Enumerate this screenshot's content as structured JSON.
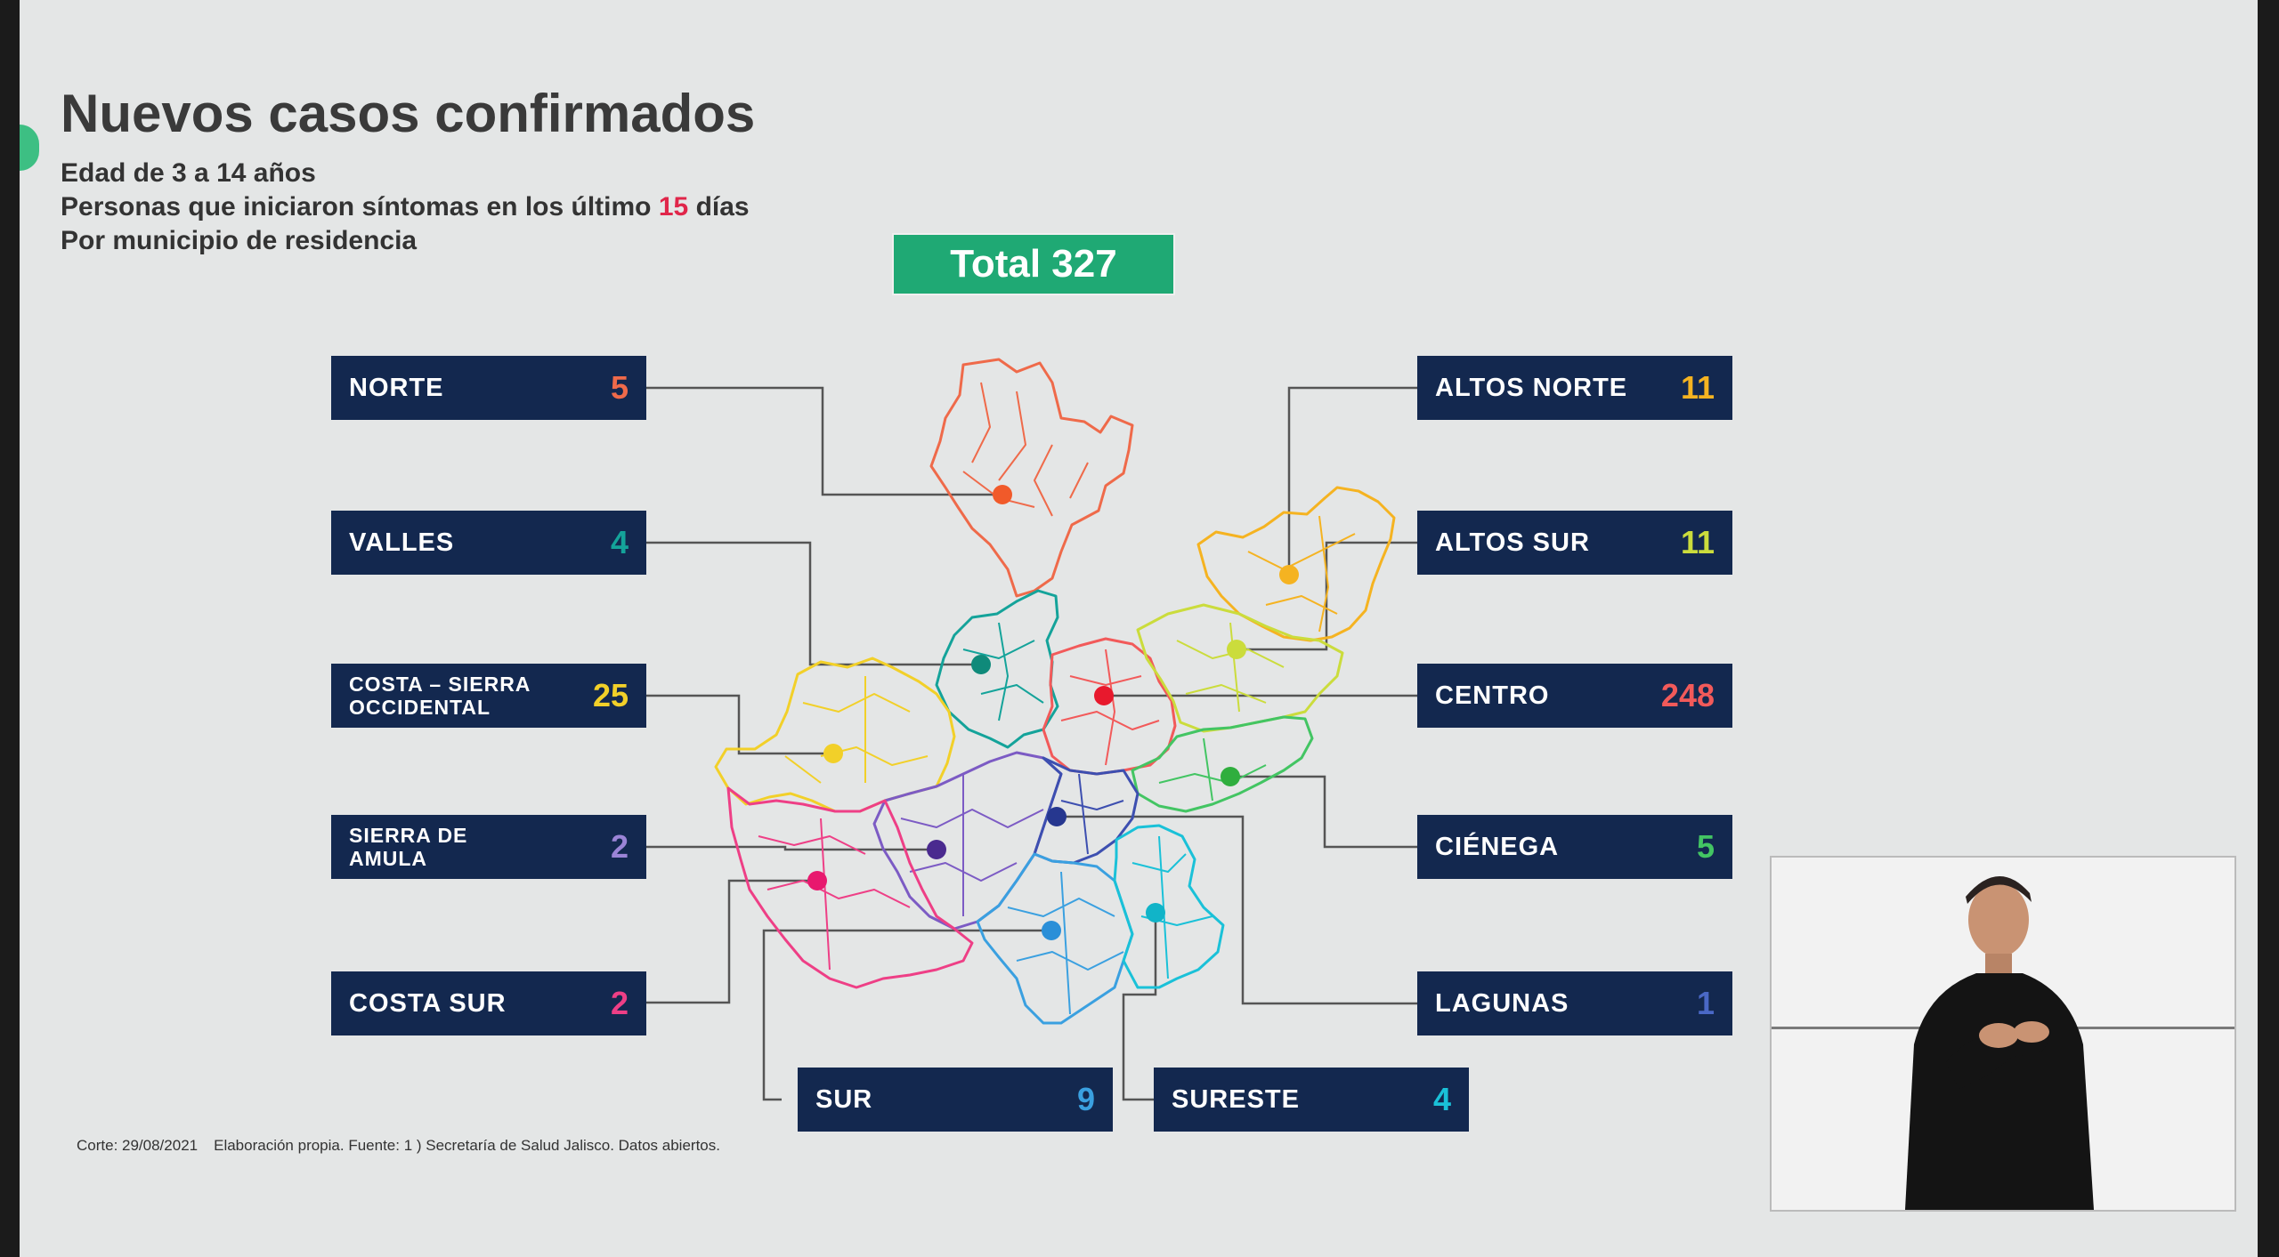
{
  "header": {
    "title": "Nuevos casos confirmados",
    "line1": "Edad de 3 a 14 años",
    "line2_a": "Personas que iniciaron síntomas en los último",
    "line2_num": "15",
    "line2_b": "días",
    "line3": "Por municipio de residencia"
  },
  "total": {
    "label": "Total 327"
  },
  "regions": [
    {
      "id": "norte",
      "name": "NORTE",
      "value": "5",
      "color": "#ef6a4a"
    },
    {
      "id": "valles",
      "name": "VALLES",
      "value": "4",
      "color": "#14a39a"
    },
    {
      "id": "costa-sierra",
      "name": "COSTA – SIERRA OCCIDENTAL",
      "value": "25",
      "color": "#f2d029"
    },
    {
      "id": "sierra-amula",
      "name": "SIERRA DE AMULA",
      "value": "2",
      "color": "#9b84d6"
    },
    {
      "id": "costa-sur",
      "name": "COSTA SUR",
      "value": "2",
      "color": "#ee3f86"
    },
    {
      "id": "altos-norte",
      "name": "ALTOS NORTE",
      "value": "11",
      "color": "#f5b321"
    },
    {
      "id": "altos-sur",
      "name": "ALTOS SUR",
      "value": "11",
      "color": "#cbdc3c"
    },
    {
      "id": "centro",
      "name": "CENTRO",
      "value": "248",
      "color": "#f25a5a"
    },
    {
      "id": "cienega",
      "name": "CIÉNEGA",
      "value": "5",
      "color": "#43c563"
    },
    {
      "id": "lagunas",
      "name": "LAGUNAS",
      "value": "1",
      "color": "#4a68c6"
    },
    {
      "id": "sur",
      "name": "SUR",
      "value": "9",
      "color": "#3aa0e0"
    },
    {
      "id": "sureste",
      "name": "SURESTE",
      "value": "4",
      "color": "#1ac1d8"
    }
  ],
  "footer": {
    "corte": "Corte: 29/08/2021",
    "source": "Elaboración propia. Fuente: 1 ) Secretaría de Salud Jalisco. Datos abiertos."
  }
}
